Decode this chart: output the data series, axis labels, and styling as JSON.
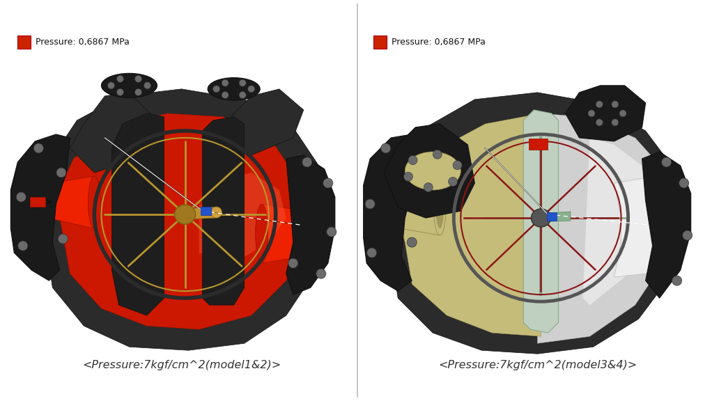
{
  "bg_color": "#ffffff",
  "border_color": "#999999",
  "divider_color": "#bbbbbb",
  "left_label": "<Pressure:7kgf/cm^2(model1&2)>",
  "right_label": "<Pressure:7kgf/cm^2(model3&4)>",
  "legend_text": "Pressure: 0,6867 MPa",
  "legend_color": "#cc2200",
  "label_fontsize": 11.5,
  "legend_fontsize": 9,
  "label_color": "#333333",
  "dark_casing": "#2b2b2b",
  "dark_casing2": "#1a1a1a",
  "hole_color": "#6a6a6a",
  "red_main": "#cc1800",
  "red_dark": "#991000",
  "red_bright": "#ee2200",
  "red_highlight": "#ff6644",
  "gold_spoke": "#b8962e",
  "gold_dark": "#7a6010",
  "olive_main": "#c5bc7a",
  "olive_dark": "#8a8040",
  "silver_main": "#d0d0d0",
  "silver_bright": "#eeeeee",
  "silver_mid": "#b8b8b8",
  "blue_marker": "#2255cc",
  "white": "#ffffff",
  "gray_rim": "#888888",
  "spoke_dark_red": "#8b1515"
}
